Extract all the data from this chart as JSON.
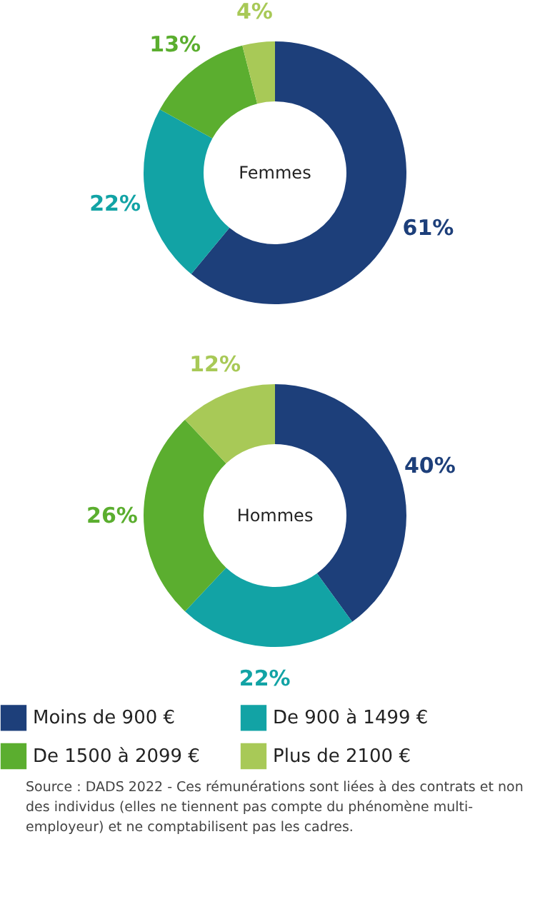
{
  "chart_data": [
    {
      "type": "donut",
      "title": "Femmes",
      "categories": [
        null,
        null,
        null,
        null
      ],
      "values": [
        61,
        22,
        13,
        4
      ],
      "value_labels": [
        "61%",
        "22%",
        "13%",
        "4%"
      ],
      "colors": [
        "#1d3f7a",
        "#12a3a5",
        "#5bae2f",
        "#a8c957"
      ]
    },
    {
      "type": "donut",
      "title": "Hommes",
      "categories": [
        "Moins de 900 €",
        "De 900 à 1499 €",
        "De 1500 à 2099 €",
        "Plus de 2100 €"
      ],
      "values": [
        40,
        22,
        26,
        12
      ],
      "value_labels": [
        "40%",
        "22%",
        "26%",
        "12%"
      ],
      "colors": [
        "#1d3f7a",
        "#12a3a5",
        "#5bae2f",
        "#a8c957"
      ],
      "legend": "bottom",
      "annotations": [
        "Source : DADS 2022 - Ces rémunérations sont liées à des contrats et non des individus (elles ne tiennent pas compte du phénomène multi-employeur) et ne comptabilisent pas les cadres."
      ]
    }
  ]
}
